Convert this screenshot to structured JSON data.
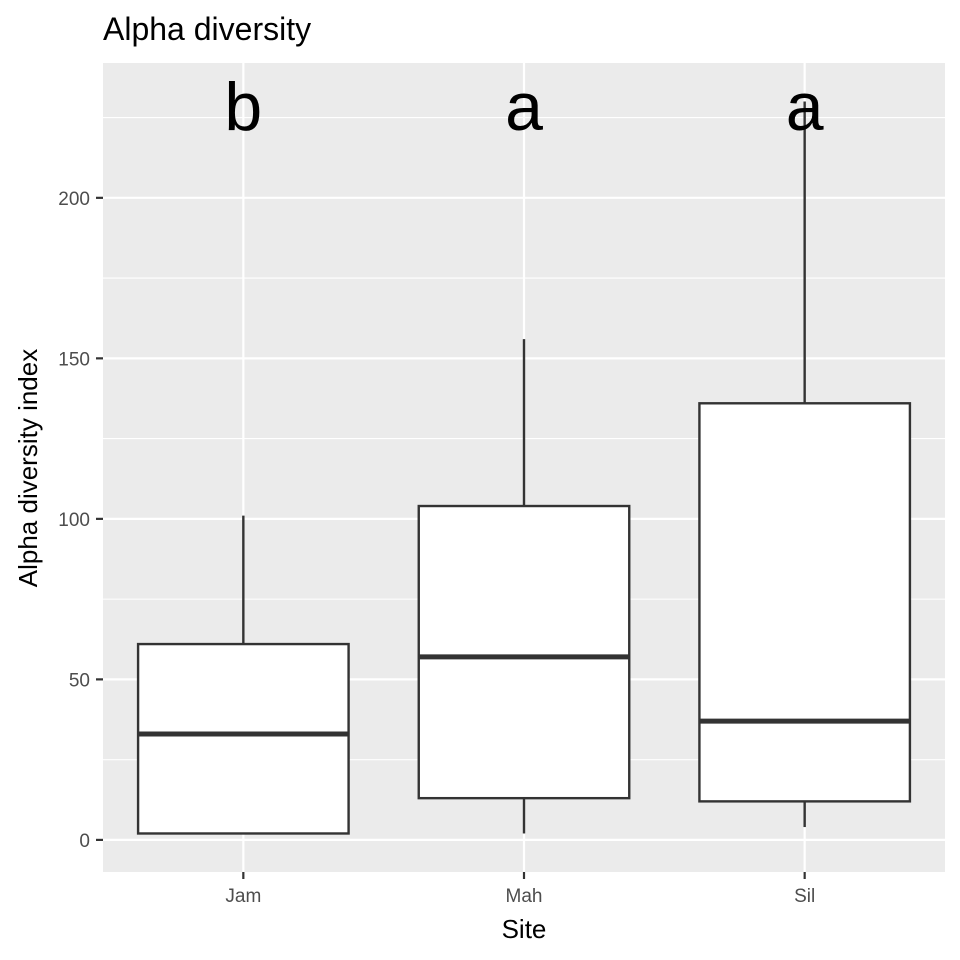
{
  "chart_data": {
    "type": "boxplot",
    "title": "Alpha diversity",
    "xlabel": "Site",
    "ylabel": "Alpha diversity index",
    "categories": [
      "Jam",
      "Mah",
      "Sil"
    ],
    "boxes": [
      {
        "category": "Jam",
        "whisker_low": 2,
        "q1": 2,
        "median": 33,
        "q3": 61,
        "whisker_high": 101,
        "letter": "b"
      },
      {
        "category": "Mah",
        "whisker_low": 2,
        "q1": 13,
        "median": 57,
        "q3": 104,
        "whisker_high": 156,
        "letter": "a"
      },
      {
        "category": "Sil",
        "whisker_low": 4,
        "q1": 12,
        "median": 37,
        "q3": 136,
        "whisker_high": 230,
        "letter": "a"
      }
    ],
    "yticks": [
      0,
      50,
      100,
      150,
      200
    ],
    "ylim": [
      -10,
      242
    ],
    "grid": true,
    "legend": "none",
    "colors": {
      "panel": "#ebebeb",
      "grid": "#ffffff",
      "box_fill": "#ffffff",
      "box_stroke": "#333333"
    }
  }
}
